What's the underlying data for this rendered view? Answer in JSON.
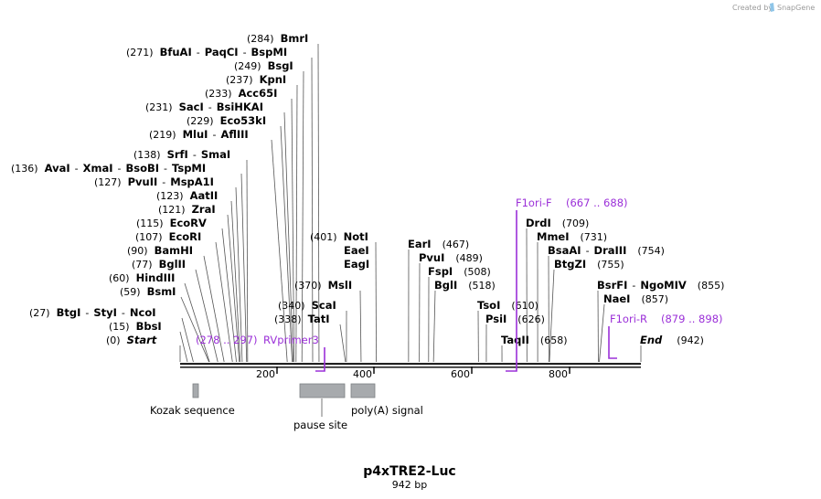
{
  "credit": {
    "created_by": "Created by",
    "brand": "SnapGene"
  },
  "map": {
    "title": "p4xTRE2-Luc",
    "length_label": "942 bp",
    "total_bp": 942,
    "ruler_ticks": [
      "200",
      "400",
      "600",
      "800"
    ]
  },
  "sites": [
    {
      "pos": 284,
      "label": "(284)",
      "enzymes": [
        "BmrI"
      ]
    },
    {
      "pos": 271,
      "label": "(271)",
      "enzymes": [
        "BfuAI",
        "PaqCI",
        "BspMI"
      ]
    },
    {
      "pos": 249,
      "label": "(249)",
      "enzymes": [
        "BsgI"
      ]
    },
    {
      "pos": 237,
      "label": "(237)",
      "enzymes": [
        "KpnI"
      ]
    },
    {
      "pos": 233,
      "label": "(233)",
      "enzymes": [
        "Acc65I"
      ]
    },
    {
      "pos": 231,
      "label": "(231)",
      "enzymes": [
        "SacI",
        "BsiHKAI"
      ]
    },
    {
      "pos": 229,
      "label": "(229)",
      "enzymes": [
        "Eco53kI"
      ]
    },
    {
      "pos": 219,
      "label": "(219)",
      "enzymes": [
        "MluI",
        "AflIII"
      ]
    },
    {
      "pos": 138,
      "label": "(138)",
      "enzymes": [
        "SrfI",
        "SmaI"
      ]
    },
    {
      "pos": 136,
      "label": "(136)",
      "enzymes": [
        "AvaI",
        "XmaI",
        "BsoBI",
        "TspMI"
      ]
    },
    {
      "pos": 127,
      "label": "(127)",
      "enzymes": [
        "PvuII",
        "MspA1I"
      ]
    },
    {
      "pos": 123,
      "label": "(123)",
      "enzymes": [
        "AatII"
      ]
    },
    {
      "pos": 121,
      "label": "(121)",
      "enzymes": [
        "ZraI"
      ]
    },
    {
      "pos": 115,
      "label": "(115)",
      "enzymes": [
        "EcoRV"
      ]
    },
    {
      "pos": 107,
      "label": "(107)",
      "enzymes": [
        "EcoRI"
      ]
    },
    {
      "pos": 90,
      "label": "(90)",
      "enzymes": [
        "BamHI"
      ]
    },
    {
      "pos": 77,
      "label": "(77)",
      "enzymes": [
        "BglII"
      ]
    },
    {
      "pos": 60,
      "label": "(60)",
      "enzymes": [
        "HindIII"
      ]
    },
    {
      "pos": 59,
      "label": "(59)",
      "enzymes": [
        "BsmI"
      ]
    },
    {
      "pos": 27,
      "label": "(27)",
      "enzymes": [
        "BtgI",
        "StyI",
        "NcoI"
      ]
    },
    {
      "pos": 15,
      "label": "(15)",
      "enzymes": [
        "BbsI"
      ]
    },
    {
      "pos": 0,
      "label": "(0)",
      "enzymes": [
        "Start"
      ]
    },
    {
      "pos": 401,
      "label": "(401)",
      "enzymes": [
        "NotI"
      ]
    },
    {
      "pos": 401,
      "label": "",
      "enzymes": [
        "EaeI"
      ]
    },
    {
      "pos": 401,
      "label": "",
      "enzymes": [
        "EagI"
      ]
    },
    {
      "pos": 370,
      "label": "(370)",
      "enzymes": [
        "MslI"
      ]
    },
    {
      "pos": 340,
      "label": "(340)",
      "enzymes": [
        "ScaI"
      ]
    },
    {
      "pos": 338,
      "label": "(338)",
      "enzymes": [
        "TatI"
      ]
    },
    {
      "pos": 467,
      "label": "(467)",
      "enzymes": [
        "EarI"
      ]
    },
    {
      "pos": 489,
      "label": "(489)",
      "enzymes": [
        "PvuI"
      ]
    },
    {
      "pos": 508,
      "label": "(508)",
      "enzymes": [
        "FspI"
      ]
    },
    {
      "pos": 518,
      "label": "(518)",
      "enzymes": [
        "BglI"
      ]
    },
    {
      "pos": 610,
      "label": "(610)",
      "enzymes": [
        "TsoI"
      ]
    },
    {
      "pos": 626,
      "label": "(626)",
      "enzymes": [
        "PsiI"
      ]
    },
    {
      "pos": 658,
      "label": "(658)",
      "enzymes": [
        "TaqII"
      ]
    },
    {
      "pos": 709,
      "label": "(709)",
      "enzymes": [
        "DrdI"
      ]
    },
    {
      "pos": 731,
      "label": "(731)",
      "enzymes": [
        "MmeI"
      ]
    },
    {
      "pos": 754,
      "label": "(754)",
      "enzymes": [
        "BsaAI",
        "DraIII"
      ]
    },
    {
      "pos": 755,
      "label": "(755)",
      "enzymes": [
        "BtgZI"
      ]
    },
    {
      "pos": 855,
      "label": "(855)",
      "enzymes": [
        "BsrFI",
        "NgoMIV"
      ]
    },
    {
      "pos": 857,
      "label": "(857)",
      "enzymes": [
        "NaeI"
      ]
    },
    {
      "pos": 942,
      "label": "(942)",
      "enzymes": [
        "End"
      ]
    }
  ],
  "primers": [
    {
      "name": "RVprimer3",
      "range": "(278 .. 297)",
      "start": 278,
      "end": 297
    },
    {
      "name": "F1ori-F",
      "range": "(667 .. 688)",
      "start": 667,
      "end": 688
    },
    {
      "name": "F1ori-R",
      "range": "(879 .. 898)",
      "start": 879,
      "end": 898
    }
  ],
  "features": [
    {
      "name": "Kozak sequence",
      "start": 25,
      "end": 35
    },
    {
      "name": "pause site",
      "start": 248,
      "end": 340
    },
    {
      "name": "poly(A) signal",
      "start": 350,
      "end": 400
    }
  ],
  "colors": {
    "primer": "#9b30d8",
    "feature_fill": "#a7aaad",
    "backbone": "#222222"
  }
}
